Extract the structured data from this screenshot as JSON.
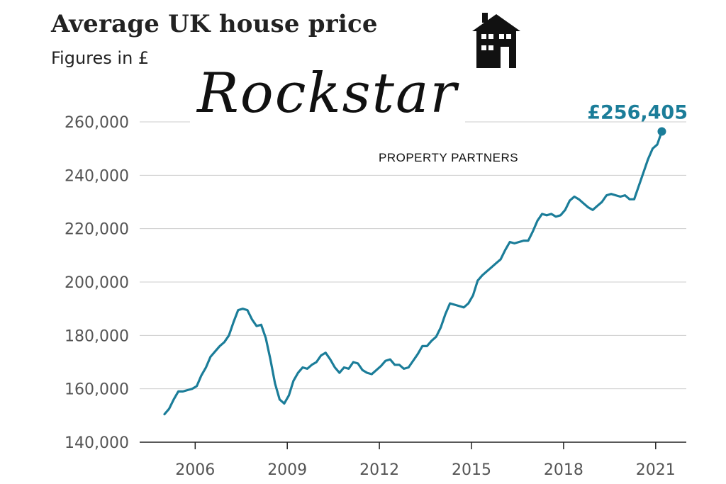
{
  "header": {
    "title": "Average UK house price",
    "subtitle": "Figures in £"
  },
  "logo": {
    "script_text": "Rockstar",
    "sub_text": "PROPERTY PARTNERS",
    "icon": "house-icon"
  },
  "colors": {
    "line": "#1b7d99",
    "grid": "#cccccc",
    "text": "#222222",
    "tick": "#555555"
  },
  "chart_data": {
    "type": "line",
    "title": "Average UK house price",
    "subtitle": "Figures in £",
    "xlabel": "",
    "ylabel": "",
    "xlim": [
      2005.0,
      2021.95
    ],
    "ylim": [
      140000,
      260000
    ],
    "y_ticks": [
      140000,
      160000,
      180000,
      200000,
      220000,
      240000,
      260000
    ],
    "y_tick_labels": [
      "140,000",
      "160,000",
      "180,000",
      "200,000",
      "220,000",
      "240,000",
      "260,000"
    ],
    "x_ticks": [
      2006,
      2009,
      2012,
      2015,
      2018,
      2021
    ],
    "x_tick_labels": [
      "2006",
      "2009",
      "2012",
      "2015",
      "2018",
      "2021"
    ],
    "grid": "horizontal",
    "annotation": {
      "label": "£256,405",
      "x": 2021.2,
      "y": 256405
    },
    "series": [
      {
        "x": [
          2005.0,
          2005.15,
          2005.3,
          2005.45,
          2005.6,
          2005.75,
          2005.9,
          2006.05,
          2006.2,
          2006.35,
          2006.5,
          2006.65,
          2006.8,
          2006.95,
          2007.1,
          2007.25,
          2007.4,
          2007.55,
          2007.7,
          2007.85,
          2008.0,
          2008.15,
          2008.3,
          2008.45,
          2008.6,
          2008.75,
          2008.9,
          2009.05,
          2009.2,
          2009.35,
          2009.5,
          2009.65,
          2009.8,
          2009.95,
          2010.1,
          2010.25,
          2010.4,
          2010.55,
          2010.7,
          2010.85,
          2011.0,
          2011.15,
          2011.3,
          2011.45,
          2011.6,
          2011.75,
          2011.9,
          2012.05,
          2012.2,
          2012.35,
          2012.5,
          2012.65,
          2012.8,
          2012.95,
          2013.1,
          2013.25,
          2013.4,
          2013.55,
          2013.7,
          2013.85,
          2014.0,
          2014.15,
          2014.3,
          2014.45,
          2014.6,
          2014.75,
          2014.9,
          2015.05,
          2015.2,
          2015.35,
          2015.5,
          2015.65,
          2015.8,
          2015.95,
          2016.1,
          2016.25,
          2016.4,
          2016.55,
          2016.7,
          2016.85,
          2017.0,
          2017.15,
          2017.3,
          2017.45,
          2017.6,
          2017.75,
          2017.9,
          2018.05,
          2018.2,
          2018.35,
          2018.5,
          2018.65,
          2018.8,
          2018.95,
          2019.1,
          2019.25,
          2019.4,
          2019.55,
          2019.7,
          2019.85,
          2020.0,
          2020.15,
          2020.3,
          2020.45,
          2020.6,
          2020.75,
          2020.9,
          2021.05,
          2021.2
        ],
        "y": [
          150500,
          152500,
          156000,
          159000,
          159000,
          159500,
          160000,
          161000,
          165000,
          168000,
          172000,
          174000,
          176000,
          177500,
          180000,
          185000,
          189500,
          190000,
          189500,
          186000,
          183500,
          184000,
          179000,
          171000,
          162000,
          156000,
          154500,
          157500,
          163000,
          166000,
          168000,
          167500,
          169000,
          170000,
          172500,
          173500,
          171000,
          168000,
          166000,
          168000,
          167500,
          170000,
          169500,
          167000,
          166000,
          165500,
          167000,
          168500,
          170500,
          171000,
          169000,
          169000,
          167500,
          168000,
          170500,
          173000,
          176000,
          176000,
          178000,
          179500,
          183000,
          188000,
          192000,
          191500,
          191000,
          190500,
          192000,
          195000,
          200500,
          202500,
          204000,
          205500,
          207000,
          208500,
          212000,
          215000,
          214500,
          215000,
          215500,
          215500,
          219000,
          223000,
          225500,
          225000,
          225500,
          224500,
          225000,
          227000,
          230500,
          232000,
          231000,
          229500,
          228000,
          227000,
          228500,
          230000,
          232500,
          233000,
          232500,
          232000,
          232500,
          231000,
          231000,
          236000,
          241000,
          246000,
          250000,
          251500,
          256405
        ]
      }
    ]
  }
}
